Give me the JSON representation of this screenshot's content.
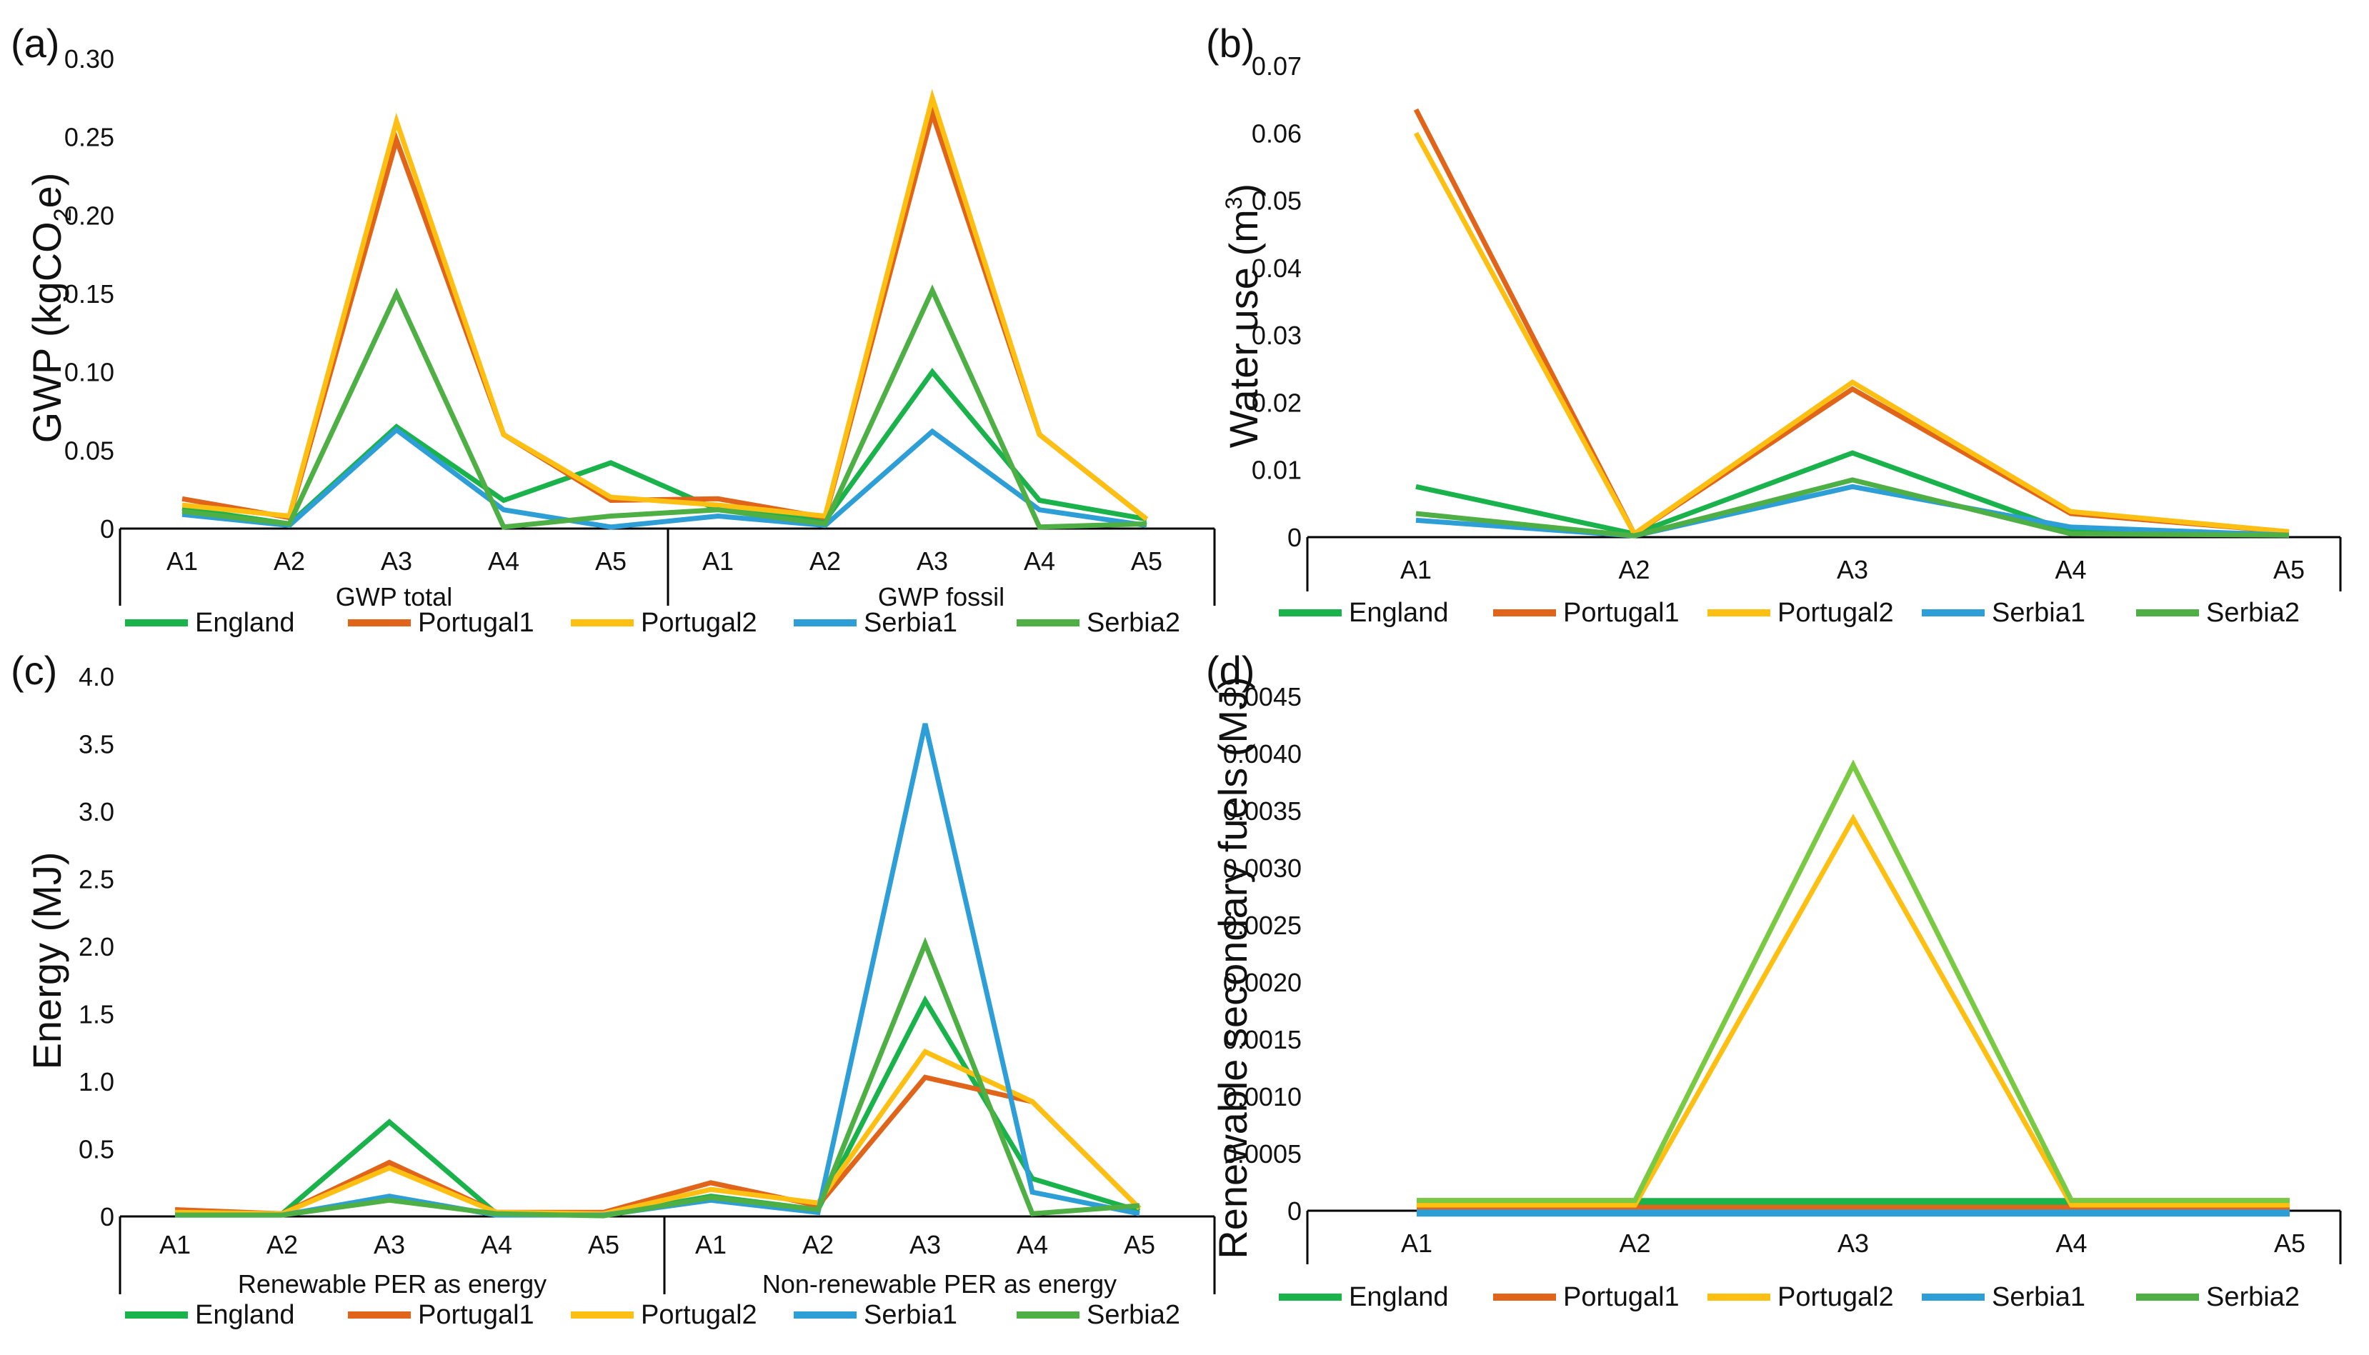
{
  "colors": {
    "England": "#19b24b",
    "Portugal1": "#e0641a",
    "Portugal2": "#fdbf12",
    "Serbia1": "#2e9fd6",
    "Serbia2": "#4eaf44",
    "Serbia2_d": "#7ac943"
  },
  "chart_data": [
    {
      "id": "a",
      "panel_label": "(a)",
      "type": "line",
      "ylabel": "GWP (kgCO2e)",
      "ylabel_main": "GWP (kgCO",
      "ylabel_sub": "2",
      "ylabel_end": "e)",
      "ylim": [
        0,
        0.3
      ],
      "yticks": [
        "0",
        "0.05",
        "0.10",
        "0.15",
        "0.20",
        "0.25",
        "0.30"
      ],
      "ytick_values": [
        0,
        0.05,
        0.1,
        0.15,
        0.2,
        0.25,
        0.3
      ],
      "categories": [
        "A1",
        "A2",
        "A3",
        "A4",
        "A5",
        "A1",
        "A2",
        "A3",
        "A4",
        "A5"
      ],
      "groups": [
        "GWP total",
        "GWP fossil"
      ],
      "legend": [
        "England",
        "Portugal1",
        "Portugal2",
        "Serbia1",
        "Serbia2"
      ],
      "series": [
        {
          "name": "England",
          "values": [
            0.013,
            0.003,
            0.065,
            0.018,
            0.042,
            0.012,
            0.005,
            0.1,
            0.018,
            0.006
          ]
        },
        {
          "name": "Portugal1",
          "values": [
            0.019,
            0.007,
            0.248,
            0.06,
            0.018,
            0.019,
            0.007,
            0.265,
            0.06,
            0.006
          ]
        },
        {
          "name": "Portugal2",
          "values": [
            0.015,
            0.008,
            0.26,
            0.06,
            0.02,
            0.015,
            0.008,
            0.275,
            0.06,
            0.006
          ]
        },
        {
          "name": "Serbia1",
          "values": [
            0.009,
            0.002,
            0.063,
            0.012,
            0.001,
            0.008,
            0.002,
            0.062,
            0.012,
            0.002
          ]
        },
        {
          "name": "Serbia2",
          "values": [
            0.011,
            0.003,
            0.15,
            0.001,
            0.008,
            0.012,
            0.003,
            0.152,
            0.001,
            0.003
          ]
        }
      ]
    },
    {
      "id": "b",
      "panel_label": "(b)",
      "type": "line",
      "ylabel": "Water use (m3)",
      "ylabel_main": "Water use (m",
      "ylabel_sup": "3",
      "ylabel_end": ")",
      "ylim": [
        0,
        0.07
      ],
      "yticks": [
        "0",
        "0.01",
        "0.02",
        "0.03",
        "0.04",
        "0.05",
        "0.06",
        "0.07"
      ],
      "ytick_values": [
        0,
        0.01,
        0.02,
        0.03,
        0.04,
        0.05,
        0.06,
        0.07
      ],
      "categories": [
        "A1",
        "A2",
        "A3",
        "A4",
        "A5"
      ],
      "legend": [
        "England",
        "Portugal1",
        "Portugal2",
        "Serbia1",
        "Serbia2"
      ],
      "series": [
        {
          "name": "England",
          "values": [
            0.0075,
            0.0005,
            0.0125,
            0.0008,
            0.0005
          ]
        },
        {
          "name": "Portugal1",
          "values": [
            0.0635,
            0.0005,
            0.022,
            0.0035,
            0.0008
          ]
        },
        {
          "name": "Portugal2",
          "values": [
            0.06,
            0.0005,
            0.023,
            0.0038,
            0.0008
          ]
        },
        {
          "name": "Serbia1",
          "values": [
            0.0025,
            0.0002,
            0.0075,
            0.0015,
            0.0003
          ]
        },
        {
          "name": "Serbia2",
          "values": [
            0.0035,
            0.0002,
            0.0085,
            0.0005,
            0.0003
          ]
        }
      ]
    },
    {
      "id": "c",
      "panel_label": "(c)",
      "type": "line",
      "ylabel": "Energy (MJ)",
      "ylim": [
        0,
        4.0
      ],
      "yticks": [
        "0",
        "0.5",
        "1.0",
        "1.5",
        "2.0",
        "2.5",
        "3.0",
        "3.5",
        "4.0"
      ],
      "ytick_values": [
        0,
        0.5,
        1.0,
        1.5,
        2.0,
        2.5,
        3.0,
        3.5,
        4.0
      ],
      "categories": [
        "A1",
        "A2",
        "A3",
        "A4",
        "A5",
        "A1",
        "A2",
        "A3",
        "A4",
        "A5"
      ],
      "groups": [
        "Renewable PER as energy",
        "Non-renewable PER as energy"
      ],
      "legend": [
        "England",
        "Portugal1",
        "Portugal2",
        "Serbia1",
        "Serbia2"
      ],
      "series": [
        {
          "name": "England",
          "values": [
            0.02,
            0.02,
            0.7,
            0.02,
            0.01,
            0.15,
            0.05,
            1.6,
            0.28,
            0.04
          ]
        },
        {
          "name": "Portugal1",
          "values": [
            0.05,
            0.02,
            0.4,
            0.03,
            0.03,
            0.25,
            0.08,
            1.03,
            0.85,
            0.06
          ]
        },
        {
          "name": "Portugal2",
          "values": [
            0.03,
            0.02,
            0.36,
            0.03,
            0.02,
            0.2,
            0.1,
            1.22,
            0.85,
            0.06
          ]
        },
        {
          "name": "Serbia1",
          "values": [
            0.01,
            0.01,
            0.15,
            0.01,
            0.01,
            0.12,
            0.03,
            3.65,
            0.18,
            0.02
          ]
        },
        {
          "name": "Serbia2",
          "values": [
            0.01,
            0.01,
            0.12,
            0.02,
            0.005,
            0.14,
            0.05,
            2.02,
            0.02,
            0.08
          ]
        }
      ]
    },
    {
      "id": "d",
      "panel_label": "(d)",
      "type": "line",
      "ylabel": "Renewable secondary fuels (MJ)",
      "ylim": [
        0,
        0.0045
      ],
      "yticks": [
        "0",
        "0.0005",
        "0.0010",
        "0.0015",
        "0.0020",
        "0.0025",
        "0.0030",
        "0.0035",
        "0.0040",
        "0.0045"
      ],
      "ytick_values": [
        0,
        0.0005,
        0.001,
        0.0015,
        0.002,
        0.0025,
        0.003,
        0.0035,
        0.004,
        0.0045
      ],
      "categories": [
        "A1",
        "A2",
        "A3",
        "A4",
        "A5"
      ],
      "legend": [
        "England",
        "Portugal1",
        "Portugal2",
        "Serbia1",
        "Serbia2"
      ],
      "series": [
        {
          "name": "England",
          "values": [
            8e-05,
            8e-05,
            8e-05,
            8e-05,
            8e-05
          ]
        },
        {
          "name": "Portugal1",
          "values": [
            2e-05,
            2e-05,
            2e-05,
            2e-05,
            2e-05
          ]
        },
        {
          "name": "Portugal2",
          "values": [
            5e-05,
            5e-05,
            0.00343,
            5e-05,
            5e-05
          ]
        },
        {
          "name": "Serbia1",
          "values": [
            -2e-05,
            -2e-05,
            -2e-05,
            -2e-05,
            -2e-05
          ]
        },
        {
          "name": "Serbia2",
          "values": [
            9e-05,
            9e-05,
            0.0039,
            9e-05,
            9e-05
          ]
        }
      ]
    }
  ]
}
